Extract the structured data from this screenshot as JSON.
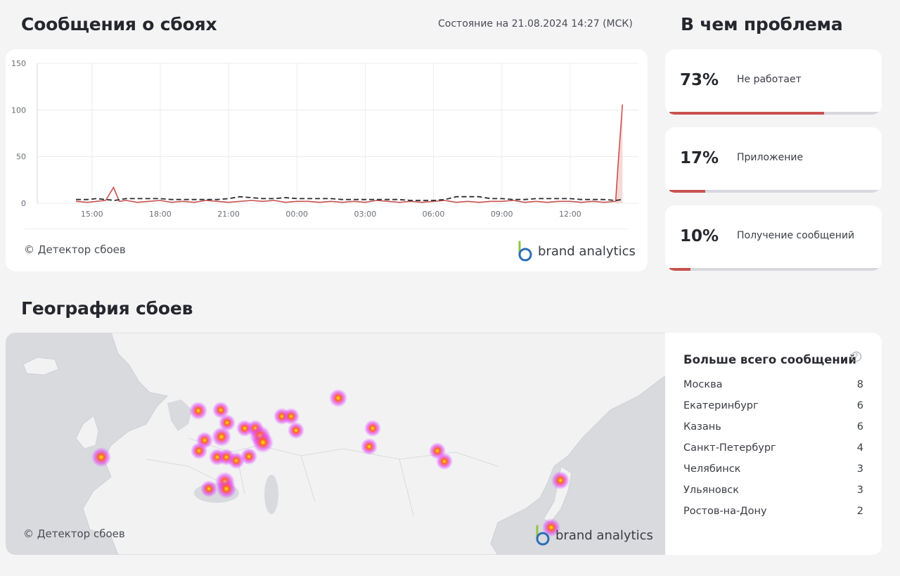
{
  "header": {
    "title": "Сообщения о сбоях",
    "status": "Состояние на 21.08.2024 14:27 (МСК)",
    "problems_title": "В чем проблема",
    "geo_title": "География сбоев"
  },
  "chart_data": {
    "type": "line",
    "x_ticks": [
      "15:00",
      "18:00",
      "21:00",
      "00:00",
      "03:00",
      "06:00",
      "09:00",
      "12:00"
    ],
    "y_ticks": [
      "150",
      "100",
      "50",
      "0"
    ],
    "ylim": [
      0,
      150
    ],
    "series": [
      {
        "style": "solid",
        "color": "#c8524f",
        "x": [
          14.3,
          14.8,
          15.2,
          15.6,
          15.95,
          16.2,
          16.5,
          17,
          17.5,
          18,
          18.5,
          19,
          19.5,
          20,
          20.5,
          21,
          21.5,
          22,
          22.5,
          23,
          23.5,
          24,
          24.5,
          25,
          25.5,
          26,
          26.5,
          27,
          27.5,
          28,
          28.5,
          29,
          29.5,
          30,
          30.5,
          31,
          31.5,
          32,
          32.5,
          33,
          33.5,
          34,
          34.5,
          35,
          35.5,
          36,
          36.5,
          37,
          37.5,
          38,
          38.1,
          38.3
        ],
        "y": [
          2,
          1,
          2,
          3,
          17,
          2,
          3,
          1,
          2,
          3,
          1,
          2,
          1,
          3,
          2,
          1,
          2,
          3,
          2,
          3,
          1,
          2,
          2,
          1,
          2,
          1,
          2,
          1,
          3,
          2,
          1,
          2,
          1,
          2,
          3,
          1,
          2,
          1,
          2,
          2,
          3,
          1,
          2,
          1,
          2,
          2,
          1,
          2,
          1,
          2,
          40,
          106
        ]
      },
      {
        "style": "dashed",
        "color": "#2b2d33",
        "x": [
          14.3,
          14.8,
          15.2,
          15.6,
          16,
          16.5,
          17,
          17.5,
          18,
          18.5,
          19,
          19.5,
          20,
          20.5,
          21,
          21.5,
          22,
          22.5,
          23,
          23.5,
          24,
          24.5,
          25,
          25.5,
          26,
          26.5,
          27,
          27.5,
          28,
          28.5,
          29,
          29.5,
          30,
          30.5,
          31,
          31.5,
          32,
          32.5,
          33,
          33.5,
          34,
          34.5,
          35,
          35.5,
          36,
          36.5,
          37,
          37.5,
          38,
          38.3
        ],
        "y": [
          4,
          4,
          5,
          4,
          3,
          5,
          5,
          5,
          5,
          4,
          4,
          4,
          4,
          4,
          5,
          7,
          6,
          5,
          5,
          6,
          5,
          5,
          5,
          5,
          4,
          4,
          4,
          4,
          4,
          4,
          3,
          3,
          3,
          4,
          7,
          7,
          7,
          5,
          5,
          4,
          4,
          5,
          5,
          5,
          5,
          4,
          4,
          4,
          3,
          4
        ]
      }
    ]
  },
  "chart_footer": {
    "copyright": "© Детектор сбоев",
    "brand": "brand analytics"
  },
  "problems": [
    {
      "pct": "73%",
      "label": "Не работает",
      "share": 0.73
    },
    {
      "pct": "17%",
      "label": "Приложение",
      "share": 0.17
    },
    {
      "pct": "10%",
      "label": "Получение сообщений",
      "share": 0.1
    }
  ],
  "map": {
    "copyright": "© Детектор сбоев",
    "brand": "brand analytics"
  },
  "cities": {
    "title": "Больше всего сообщений",
    "help": "?",
    "rows": [
      {
        "name": "Москва",
        "count": "8"
      },
      {
        "name": "Екатеринбург",
        "count": "6"
      },
      {
        "name": "Казань",
        "count": "6"
      },
      {
        "name": "Санкт-Петербург",
        "count": "4"
      },
      {
        "name": "Челябинск",
        "count": "3"
      },
      {
        "name": "Ульяновск",
        "count": "3"
      },
      {
        "name": "Ростов-на-Дону",
        "count": "2"
      }
    ]
  },
  "colors": {
    "accent_red": "#c8524f",
    "track": "#d7d7de",
    "heat_core": "#fff200",
    "heat_mid": "#ff5a2a",
    "heat_outer": "#e040fb"
  }
}
